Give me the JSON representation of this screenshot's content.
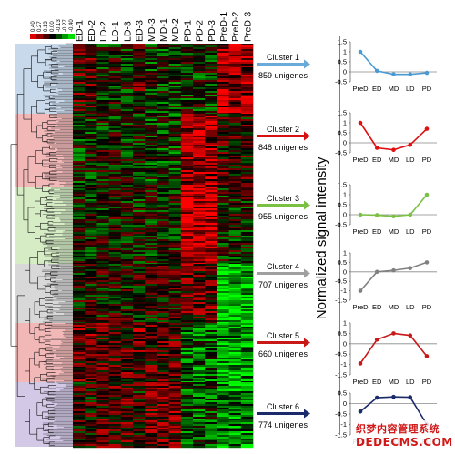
{
  "scale": {
    "labels": [
      "0.40",
      "0.27",
      "0.13",
      "0.00",
      "-0.13",
      "-0.27",
      "-0.40"
    ],
    "colors": [
      "#e00000",
      "#9a0000",
      "#4a0000",
      "#000000",
      "#004a00",
      "#009a00",
      "#00e000"
    ]
  },
  "heatmap": {
    "columns": [
      "ED-1",
      "ED-2",
      "LD-2",
      "LD-1",
      "LD-3",
      "ED-3",
      "MD-3",
      "MD-1",
      "MD-2",
      "PD-1",
      "PD-2",
      "PD-3",
      "PreD-1",
      "PreD-2",
      "PreD-3"
    ],
    "cluster_colors": [
      "#c9d9ec",
      "#f2b8b8",
      "#d5ecc5",
      "#d8d8d8",
      "#f2b8b8",
      "#d3c8e6"
    ]
  },
  "y_axis_label": "Normalized signal intensity",
  "chart_data": [
    {
      "type": "line",
      "name": "Cluster 1",
      "unigenes": "859 unigenes",
      "color": "#4a9ad4",
      "arrow_color": "#6aaad8",
      "categories": [
        "PreD",
        "ED",
        "MD",
        "LD",
        "PD"
      ],
      "values": [
        1.0,
        0.05,
        -0.12,
        -0.12,
        -0.05
      ],
      "ylim": [
        -0.5,
        1.5
      ],
      "yticks": [
        "1.5",
        "1",
        "0.5",
        "0",
        "-0.5"
      ]
    },
    {
      "type": "line",
      "name": "Cluster 2",
      "unigenes": "848 unigenes",
      "color": "#e01010",
      "arrow_color": "#d81010",
      "categories": [
        "PreD",
        "ED",
        "MD",
        "LD",
        "PD"
      ],
      "values": [
        1.0,
        -0.25,
        -0.35,
        -0.1,
        0.7
      ],
      "ylim": [
        -0.5,
        1.5
      ],
      "yticks": [
        "1.5",
        "1",
        "0.5",
        "0",
        "-0.5"
      ]
    },
    {
      "type": "line",
      "name": "Cluster 3",
      "unigenes": "955 unigenes",
      "color": "#7ac043",
      "arrow_color": "#7ac043",
      "categories": [
        "PreD",
        "ED",
        "MD",
        "LD",
        "PD"
      ],
      "values": [
        0.0,
        -0.02,
        -0.08,
        0.0,
        1.0
      ],
      "ylim": [
        -0.5,
        1.5
      ],
      "yticks": [
        "1.5",
        "1",
        "0.5",
        "0",
        "-0.5"
      ]
    },
    {
      "type": "line",
      "name": "Cluster 4",
      "unigenes": "707 unigenes",
      "color": "#808080",
      "arrow_color": "#a0a0a0",
      "categories": [
        "PreD",
        "ED",
        "MD",
        "LD",
        "PD"
      ],
      "values": [
        -1.0,
        0.0,
        0.08,
        0.2,
        0.5
      ],
      "ylim": [
        -1.5,
        1.0
      ],
      "yticks": [
        "1",
        "0.5",
        "0",
        "-0.5",
        "-1",
        "-1.5"
      ]
    },
    {
      "type": "line",
      "name": "Cluster 5",
      "unigenes": "660 unigenes",
      "color": "#c81818",
      "arrow_color": "#c81818",
      "categories": [
        "PreD",
        "ED",
        "MD",
        "LD",
        "PD"
      ],
      "values": [
        -0.95,
        0.2,
        0.5,
        0.4,
        -0.6
      ],
      "ylim": [
        -1.5,
        1.0
      ],
      "yticks": [
        "1",
        "0.5",
        "0",
        "-0.5",
        "-1",
        "-1.5"
      ]
    },
    {
      "type": "line",
      "name": "Cluster 6",
      "unigenes": "774 unigenes",
      "color": "#1a2a6a",
      "arrow_color": "#1a2a6a",
      "categories": [
        "PreD",
        "ED",
        "MD",
        "LD",
        "PD"
      ],
      "values": [
        -0.38,
        0.28,
        0.32,
        0.3,
        -1.0
      ],
      "ylim": [
        -1.5,
        0.5
      ],
      "yticks": [
        "0.5",
        "0",
        "-0.5",
        "-1",
        "-1.5"
      ]
    }
  ],
  "watermark": {
    "line1": "织梦内容管理系统",
    "line2": "DEDECMS.COM"
  }
}
